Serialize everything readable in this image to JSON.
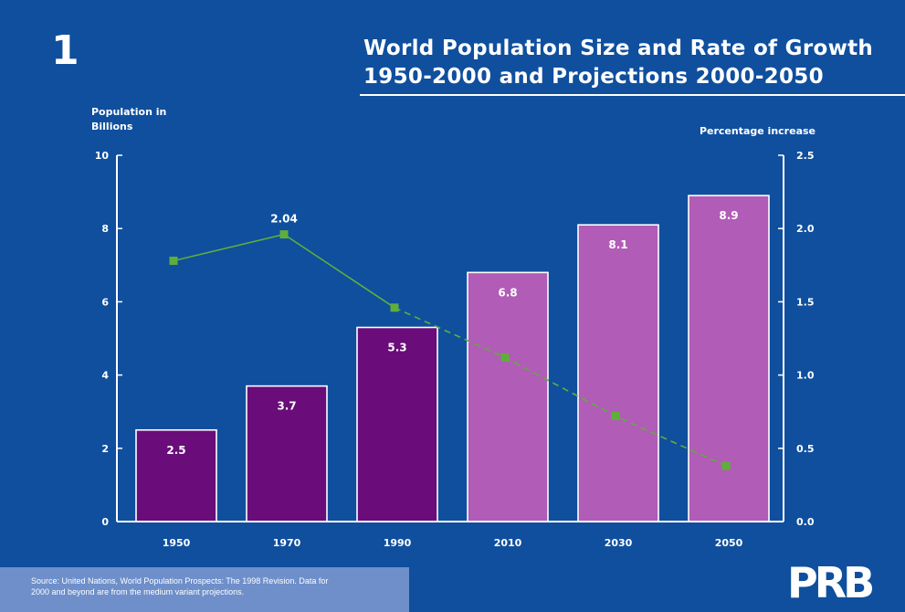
{
  "figure_number": "1",
  "title_lines": [
    "World Population Size and Rate of Growth",
    "1950-2000 and Projections 2000-2050"
  ],
  "source_note": {
    "line1": "Source: United Nations, World Population Prospects: The 1998 Revision. Data for",
    "line2": "2000 and beyond are from the medium variant projections."
  },
  "logo_text": "PRB",
  "colors": {
    "background": "#0f4f9e",
    "bar_actual": "#6a0c7a",
    "bar_projected": "#b15cb6",
    "growth_line": "#5fae3b",
    "source_box": "#6e8fca"
  },
  "chart_data": {
    "type": "bar",
    "categories": [
      "1950",
      "1970",
      "1990",
      "2010",
      "2030",
      "2050"
    ],
    "series": [
      {
        "axis": "left",
        "values": [
          2.5,
          3.7,
          5.3,
          6.8,
          8.1,
          8.9
        ],
        "data_labels": [
          "2.5",
          "3.7",
          "5.3",
          "6.8",
          "8.1",
          "8.9"
        ],
        "projected": [
          false,
          false,
          false,
          true,
          true,
          true
        ]
      },
      {
        "type": "line",
        "axis": "right",
        "values": [
          1.78,
          1.96,
          1.46,
          1.12,
          0.72,
          0.38
        ],
        "data_labels": [
          "",
          "2.04",
          "",
          "",
          "",
          ""
        ],
        "projected_from_index": 3
      }
    ],
    "ylabel_left_lines": [
      "Population in",
      "Billions"
    ],
    "ylabel_right": "Percentage increase",
    "ylim_left": [
      0,
      10
    ],
    "yticks_left": [
      "0",
      "2",
      "4",
      "6",
      "8",
      "10"
    ],
    "ylim_right": [
      0,
      2.5
    ],
    "yticks_right": [
      "0.0",
      "0.5",
      "1.0",
      "1.5",
      "2.0",
      "2.5"
    ],
    "grid": false,
    "legend": "none"
  }
}
